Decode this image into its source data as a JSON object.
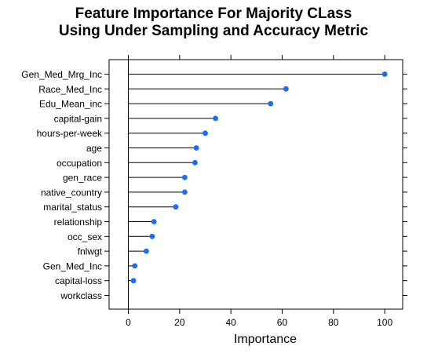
{
  "chart_data": {
    "type": "dot",
    "title_lines": [
      "Feature Importance For Majority CLass",
      "Using Under Sampling and Accuracy Metric"
    ],
    "xlabel": "Importance",
    "ylabel": "",
    "xlim": [
      -7.5,
      107
    ],
    "xticks": [
      0,
      20,
      40,
      60,
      80,
      100
    ],
    "categories": [
      "Gen_Med_Mrg_Inc",
      "Race_Med_Inc",
      "Edu_Mean_inc",
      "capital-gain",
      "hours-per-week",
      "age",
      "occupation",
      "gen_race",
      "native_country",
      "marital_status",
      "relationship",
      "occ_sex",
      "fnlwgt",
      "Gen_Med_Inc",
      "capital-loss",
      "workclass"
    ],
    "values": [
      100,
      61.5,
      55.5,
      34,
      30,
      26.5,
      26,
      22,
      22,
      18.5,
      10,
      9.3,
      7,
      2.5,
      2,
      0
    ],
    "dot_color": "#1a6bff",
    "grid": false
  }
}
